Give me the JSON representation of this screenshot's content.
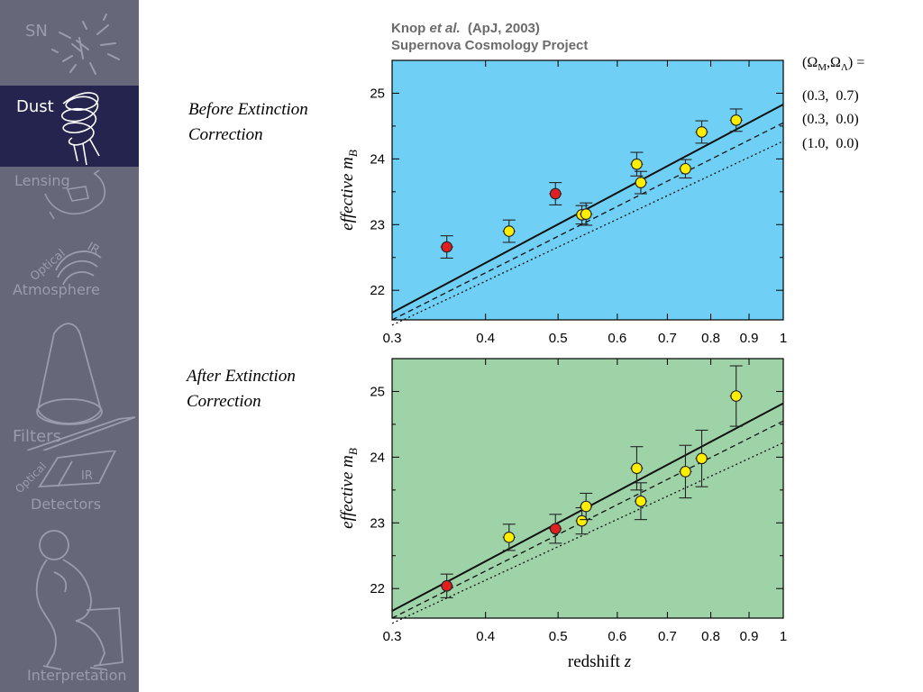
{
  "sidebar": {
    "items": [
      {
        "label": "SN",
        "icon": "supernova-icon"
      },
      {
        "label": "Dust",
        "icon": "dust-cloud-icon",
        "active": true
      },
      {
        "label": "Lensing",
        "icon": "lensing-icon"
      },
      {
        "label": "Optical",
        "label2": "IR",
        "label3": "Atmosphere",
        "icon": "atmosphere-icon"
      },
      {
        "label": "Filters",
        "icon": "filters-icon"
      },
      {
        "label": "Optical",
        "label2": "IR",
        "label3": "Detectors",
        "icon": "detectors-icon"
      },
      {
        "label": "Interpretation",
        "icon": "thinker-icon"
      }
    ],
    "bg_color": "#66687a",
    "active_color": "#25244f"
  },
  "captions": {
    "before": [
      "Before Extinction",
      "Correction"
    ],
    "after": [
      "After Extinction",
      "Correction"
    ]
  },
  "header": {
    "author": "Knop",
    "etal": "et al.",
    "journal": "(ApJ, 2003)",
    "project": "Supernova Cosmology Project"
  },
  "legend": {
    "title": "(ΩM,ΩΛ) =",
    "entries": [
      "(0.3,  0.7)",
      "(0.3,  0.0)",
      "(1.0,  0.0)"
    ]
  },
  "chart_data": [
    {
      "type": "scatter",
      "panel": "before",
      "ylabel": "effective mB",
      "xlabel": "",
      "xscale": "log",
      "xlim": [
        0.3,
        1.0
      ],
      "ylim": [
        21.55,
        25.5
      ],
      "xticks": [
        "0.3",
        "0.4",
        "0.5",
        "0.6",
        "0.7",
        "0.8",
        "0.9",
        "1"
      ],
      "yticks": [
        "22",
        "23",
        "24",
        "25"
      ],
      "background": "#6fcff4",
      "points": [
        {
          "z": 0.355,
          "m": 22.66,
          "err": 0.17,
          "color": "#e02020"
        },
        {
          "z": 0.43,
          "m": 22.9,
          "err": 0.17,
          "color": "#ffee00"
        },
        {
          "z": 0.496,
          "m": 23.47,
          "err": 0.17,
          "color": "#e02020"
        },
        {
          "z": 0.538,
          "m": 23.15,
          "err": 0.14,
          "color": "#ffee00"
        },
        {
          "z": 0.545,
          "m": 23.16,
          "err": 0.17,
          "color": "#ffee00"
        },
        {
          "z": 0.637,
          "m": 23.92,
          "err": 0.18,
          "color": "#ffee00"
        },
        {
          "z": 0.645,
          "m": 23.64,
          "err": 0.17,
          "color": "#ffee00"
        },
        {
          "z": 0.74,
          "m": 23.85,
          "err": 0.14,
          "color": "#ffee00"
        },
        {
          "z": 0.778,
          "m": 24.41,
          "err": 0.17,
          "color": "#ffee00"
        },
        {
          "z": 0.865,
          "m": 24.59,
          "err": 0.17,
          "color": "#ffee00"
        }
      ],
      "models": [
        {
          "legend_index": 0,
          "style": "solid",
          "m_at_0_3": 21.66,
          "m_at_1": 24.83
        },
        {
          "legend_index": 1,
          "style": "dashed",
          "m_at_0_3": 21.55,
          "m_at_1": 24.55
        },
        {
          "legend_index": 2,
          "style": "dotted",
          "m_at_0_3": 21.47,
          "m_at_1": 24.27
        }
      ]
    },
    {
      "type": "scatter",
      "panel": "after",
      "ylabel": "effective mB",
      "xlabel": "redshift z",
      "xscale": "log",
      "xlim": [
        0.3,
        1.0
      ],
      "ylim": [
        21.55,
        25.5
      ],
      "xticks": [
        "0.3",
        "0.4",
        "0.5",
        "0.6",
        "0.7",
        "0.8",
        "0.9",
        "1"
      ],
      "yticks": [
        "22",
        "23",
        "24",
        "25"
      ],
      "background": "#9ed3a8",
      "points": [
        {
          "z": 0.355,
          "m": 22.04,
          "err": 0.18,
          "color": "#e02020"
        },
        {
          "z": 0.43,
          "m": 22.78,
          "err": 0.2,
          "color": "#ffee00"
        },
        {
          "z": 0.496,
          "m": 22.91,
          "err": 0.22,
          "color": "#e02020"
        },
        {
          "z": 0.538,
          "m": 23.03,
          "err": 0.2,
          "color": "#ffee00"
        },
        {
          "z": 0.545,
          "m": 23.25,
          "err": 0.2,
          "color": "#ffee00"
        },
        {
          "z": 0.637,
          "m": 23.83,
          "err": 0.33,
          "color": "#ffee00"
        },
        {
          "z": 0.645,
          "m": 23.33,
          "err": 0.28,
          "color": "#ffee00"
        },
        {
          "z": 0.74,
          "m": 23.78,
          "err": 0.4,
          "color": "#ffee00"
        },
        {
          "z": 0.778,
          "m": 23.98,
          "err": 0.43,
          "color": "#ffee00"
        },
        {
          "z": 0.865,
          "m": 24.93,
          "err": 0.46,
          "color": "#ffee00"
        }
      ],
      "models": [
        {
          "legend_index": 0,
          "style": "solid",
          "m_at_0_3": 21.66,
          "m_at_1": 24.82
        },
        {
          "legend_index": 1,
          "style": "dashed",
          "m_at_0_3": 21.55,
          "m_at_1": 24.55
        },
        {
          "legend_index": 2,
          "style": "dotted",
          "m_at_0_3": 21.47,
          "m_at_1": 24.22
        }
      ]
    }
  ]
}
